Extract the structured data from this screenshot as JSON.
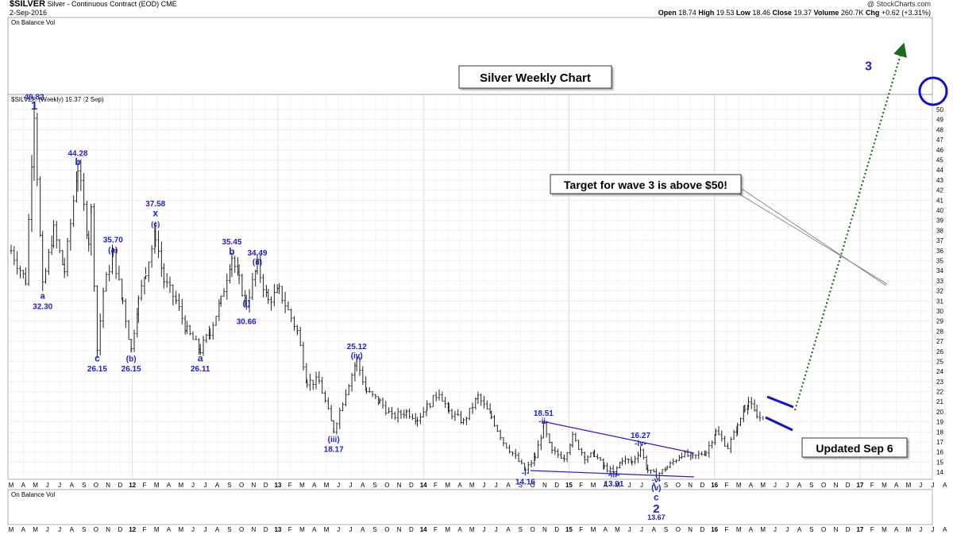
{
  "header": {
    "symbol": "$SILVER",
    "description": "Silver - Continuous Contract (EOD)",
    "exchange": "CME",
    "date": "2-Sep-2016",
    "brand": "@ StockCharts.com",
    "ohlc": {
      "open_label": "Open",
      "open": "18.74",
      "high_label": "High",
      "high": "19.53",
      "low_label": "Low",
      "low": "18.46",
      "close_label": "Close",
      "close": "19.37",
      "volume_label": "Volume",
      "volume": "260.7K",
      "chg_label": "Chg",
      "chg": "+0.62 (+3.31%)"
    }
  },
  "panels": {
    "top_indicator": "On Balance Vol",
    "bottom_indicator": "On Balance Vol",
    "price_legend": "$SILVER (Weekly) 19.37 (2 Sep)"
  },
  "colors": {
    "wave_label": "#1f1fd1",
    "target_arrow": "#1e6b1e",
    "circle": "#1010d0",
    "price_bar": "#222222"
  },
  "chart_data": {
    "type": "bar",
    "title": "Silver Weekly Chart",
    "ylim": [
      13.3,
      51.5
    ],
    "y_ticks": [
      14,
      15,
      16,
      17,
      18,
      19,
      20,
      21,
      22,
      23,
      24,
      25,
      26,
      27,
      28,
      29,
      30,
      31,
      32,
      33,
      34,
      35,
      36,
      37,
      38,
      39,
      40,
      41,
      42,
      43,
      44,
      45,
      46,
      47,
      48,
      49,
      50
    ],
    "x_months_top": [
      "M",
      "A",
      "M",
      "J",
      "J",
      "A",
      "S",
      "O",
      "N",
      "D",
      "12",
      "F",
      "M",
      "A",
      "M",
      "J",
      "J",
      "A",
      "S",
      "O",
      "N",
      "D",
      "13",
      "F",
      "M",
      "A",
      "M",
      "J",
      "J",
      "A",
      "S",
      "O",
      "N",
      "D",
      "14",
      "F",
      "M",
      "A",
      "M",
      "J",
      "J",
      "A",
      "S",
      "O",
      "N",
      "D",
      "15",
      "F",
      "M",
      "A",
      "M",
      "J",
      "J",
      "A",
      "S",
      "O",
      "N",
      "D",
      "16",
      "F",
      "M",
      "A",
      "M",
      "J",
      "J",
      "A",
      "S",
      "O",
      "N",
      "D",
      "17",
      "F",
      "M",
      "A",
      "M",
      "J",
      "J",
      "A"
    ],
    "x_months_bottom": [
      "M",
      "A",
      "M",
      "J",
      "J",
      "A",
      "S",
      "O",
      "N",
      "D",
      "12",
      "F",
      "M",
      "A",
      "M",
      "J",
      "J",
      "A",
      "S",
      "O",
      "N",
      "D",
      "13",
      "F",
      "M",
      "A",
      "M",
      "J",
      "J",
      "A",
      "S",
      "O",
      "N",
      "D",
      "14",
      "F",
      "M",
      "A",
      "M",
      "J",
      "J",
      "A",
      "S",
      "O",
      "N",
      "D",
      "15",
      "F",
      "M",
      "A",
      "M",
      "J",
      "J",
      "A",
      "S",
      "O",
      "N",
      "D",
      "16",
      "F",
      "M",
      "A",
      "M",
      "J",
      "J",
      "A",
      "S",
      "O",
      "N",
      "D",
      "17",
      "F",
      "M",
      "A",
      "M",
      "J",
      "J",
      "A"
    ],
    "pivots": [
      {
        "m": 0,
        "v": 36
      },
      {
        "m": 1.2,
        "v": 33
      },
      {
        "m": 1.9,
        "v": 49.82
      },
      {
        "m": 2.6,
        "v": 32.3
      },
      {
        "m": 3.5,
        "v": 38
      },
      {
        "m": 4.4,
        "v": 34
      },
      {
        "m": 5.5,
        "v": 44.28
      },
      {
        "m": 6.4,
        "v": 37
      },
      {
        "m": 6.6,
        "v": 40
      },
      {
        "m": 7.1,
        "v": 26.15
      },
      {
        "m": 7.6,
        "v": 32
      },
      {
        "m": 8.4,
        "v": 35.7
      },
      {
        "m": 9.2,
        "v": 31
      },
      {
        "m": 9.9,
        "v": 26.15
      },
      {
        "m": 10.5,
        "v": 31
      },
      {
        "m": 11.1,
        "v": 34
      },
      {
        "m": 11.9,
        "v": 37.58
      },
      {
        "m": 12.6,
        "v": 33
      },
      {
        "m": 13.6,
        "v": 31
      },
      {
        "m": 14.5,
        "v": 28
      },
      {
        "m": 15.6,
        "v": 26.11
      },
      {
        "m": 16.4,
        "v": 28
      },
      {
        "m": 17.3,
        "v": 31
      },
      {
        "m": 18.2,
        "v": 35.45
      },
      {
        "m": 18.8,
        "v": 33
      },
      {
        "m": 19.4,
        "v": 30.66
      },
      {
        "m": 20.3,
        "v": 34.49
      },
      {
        "m": 21.2,
        "v": 31
      },
      {
        "m": 22.1,
        "v": 32
      },
      {
        "m": 23.6,
        "v": 28
      },
      {
        "m": 24.4,
        "v": 23
      },
      {
        "m": 25.4,
        "v": 23
      },
      {
        "m": 26.6,
        "v": 18.17
      },
      {
        "m": 27.6,
        "v": 22
      },
      {
        "m": 28.5,
        "v": 25.12
      },
      {
        "m": 29.3,
        "v": 22
      },
      {
        "m": 30.4,
        "v": 21
      },
      {
        "m": 31.4,
        "v": 19.5
      },
      {
        "m": 32.6,
        "v": 20
      },
      {
        "m": 33.5,
        "v": 19.3
      },
      {
        "m": 34.3,
        "v": 20.5
      },
      {
        "m": 35.3,
        "v": 22
      },
      {
        "m": 36.1,
        "v": 20
      },
      {
        "m": 37.3,
        "v": 19
      },
      {
        "m": 38.5,
        "v": 21.5
      },
      {
        "m": 39.6,
        "v": 19.5
      },
      {
        "m": 40.6,
        "v": 17
      },
      {
        "m": 41.6,
        "v": 15.5
      },
      {
        "m": 42.4,
        "v": 14.16
      },
      {
        "m": 43.2,
        "v": 15.5
      },
      {
        "m": 43.9,
        "v": 18.51
      },
      {
        "m": 44.6,
        "v": 16
      },
      {
        "m": 45.6,
        "v": 15.5
      },
      {
        "m": 46.3,
        "v": 17.5
      },
      {
        "m": 47.3,
        "v": 15.5
      },
      {
        "m": 48.1,
        "v": 15.8
      },
      {
        "m": 48.9,
        "v": 14.5
      },
      {
        "m": 49.7,
        "v": 13.91
      },
      {
        "m": 50.4,
        "v": 15.3
      },
      {
        "m": 51.2,
        "v": 15
      },
      {
        "m": 51.9,
        "v": 16.27
      },
      {
        "m": 52.5,
        "v": 14.2
      },
      {
        "m": 53.2,
        "v": 13.67
      },
      {
        "m": 54.1,
        "v": 14.5
      },
      {
        "m": 55.3,
        "v": 15.8
      },
      {
        "m": 56.2,
        "v": 15.5
      },
      {
        "m": 57.3,
        "v": 16
      },
      {
        "m": 58.1,
        "v": 18
      },
      {
        "m": 59.1,
        "v": 16.5
      },
      {
        "m": 59.9,
        "v": 18.5
      },
      {
        "m": 60.5,
        "v": 20.5
      },
      {
        "m": 60.8,
        "v": 21
      },
      {
        "m": 61.5,
        "v": 19.5
      },
      {
        "m": 62,
        "v": 19.37
      }
    ]
  },
  "annotations": {
    "chart_title": "Silver Weekly Chart",
    "target_note": "Target for wave 3 is above $50!",
    "updated_note": "Updated Sep 6",
    "labels": [
      {
        "text": "49.82",
        "m": 1.9,
        "v": 51.0,
        "size": 10
      },
      {
        "text": "1",
        "m": 1.9,
        "v": 50.0,
        "size": 15
      },
      {
        "text": "a",
        "m": 2.6,
        "v": 31.2,
        "size": 11
      },
      {
        "text": "32.30",
        "m": 2.6,
        "v": 30.2,
        "size": 10
      },
      {
        "text": "44.28",
        "m": 5.5,
        "v": 45.4,
        "size": 10
      },
      {
        "text": "b",
        "m": 5.5,
        "v": 44.5,
        "size": 12
      },
      {
        "text": "c",
        "m": 7.1,
        "v": 25.0,
        "size": 12
      },
      {
        "text": "26.15",
        "m": 7.1,
        "v": 24.0,
        "size": 10
      },
      {
        "text": "35.70",
        "m": 8.4,
        "v": 36.8,
        "size": 10
      },
      {
        "text": "(a)",
        "m": 8.4,
        "v": 35.8,
        "size": 10
      },
      {
        "text": "(b)",
        "m": 9.9,
        "v": 25.0,
        "size": 10
      },
      {
        "text": "26.15",
        "m": 9.9,
        "v": 24.0,
        "size": 10
      },
      {
        "text": "37.58",
        "m": 11.9,
        "v": 40.4,
        "size": 10
      },
      {
        "text": "x",
        "m": 11.9,
        "v": 39.4,
        "size": 12
      },
      {
        "text": "(c)",
        "m": 11.9,
        "v": 38.4,
        "size": 9
      },
      {
        "text": "a",
        "m": 15.6,
        "v": 25.0,
        "size": 12
      },
      {
        "text": "26.11",
        "m": 15.6,
        "v": 24.0,
        "size": 10
      },
      {
        "text": "35.45",
        "m": 18.2,
        "v": 36.6,
        "size": 10
      },
      {
        "text": "b",
        "m": 18.2,
        "v": 35.6,
        "size": 12
      },
      {
        "text": "34.49",
        "m": 20.3,
        "v": 35.5,
        "size": 10
      },
      {
        "text": "(ii)",
        "m": 20.3,
        "v": 34.6,
        "size": 10
      },
      {
        "text": "(i)",
        "m": 19.4,
        "v": 30.5,
        "size": 10
      },
      {
        "text": "30.66",
        "m": 19.4,
        "v": 28.7,
        "size": 10
      },
      {
        "text": "25.12",
        "m": 28.5,
        "v": 26.2,
        "size": 10
      },
      {
        "text": "(iv)",
        "m": 28.5,
        "v": 25.3,
        "size": 10
      },
      {
        "text": "(iii)",
        "m": 26.6,
        "v": 17.0,
        "size": 10
      },
      {
        "text": "18.17",
        "m": 26.6,
        "v": 16.0,
        "size": 10
      },
      {
        "text": "18.51",
        "m": 43.9,
        "v": 19.6,
        "size": 10
      },
      {
        "text": "-ii-",
        "m": 43.9,
        "v": 18.8,
        "size": 10
      },
      {
        "text": "-i-",
        "m": 42.4,
        "v": 13.7,
        "size": 10
      },
      {
        "text": "14.16",
        "m": 42.4,
        "v": 12.8,
        "size": 10
      },
      {
        "text": "16.27",
        "m": 51.9,
        "v": 17.4,
        "size": 10
      },
      {
        "text": "-iv-",
        "m": 51.9,
        "v": 16.6,
        "size": 10
      },
      {
        "text": "-iii-",
        "m": 49.7,
        "v": 13.5,
        "size": 10
      },
      {
        "text": "13.91",
        "m": 49.7,
        "v": 12.6,
        "size": 10
      },
      {
        "text": "-v-",
        "m": 53.2,
        "v": 13.0,
        "size": 9
      },
      {
        "text": "(v)",
        "m": 53.2,
        "v": 12.2,
        "size": 10
      },
      {
        "text": "c",
        "m": 53.2,
        "v": 11.2,
        "size": 12
      },
      {
        "text": "2",
        "m": 53.2,
        "v": 10.0,
        "size": 15
      },
      {
        "text": "13.67",
        "m": 53.2,
        "v": 9.3,
        "size": 9
      },
      {
        "text": "3",
        "m": 70.7,
        "v": 53.9,
        "size": 16
      }
    ]
  }
}
